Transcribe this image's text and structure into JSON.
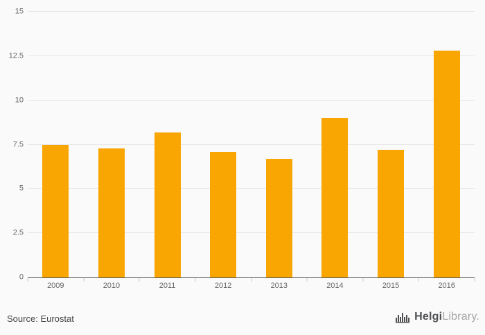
{
  "chart_data": {
    "type": "bar",
    "title": "",
    "categories": [
      "2009",
      "2010",
      "2011",
      "2012",
      "2013",
      "2014",
      "2015",
      "2016"
    ],
    "values": [
      7.5,
      7.3,
      8.2,
      7.1,
      6.7,
      9.0,
      7.2,
      12.8
    ],
    "ylim": [
      0,
      15
    ],
    "yticks": [
      0,
      2.5,
      5,
      7.5,
      10,
      12.5,
      15
    ],
    "xlabel": "",
    "ylabel": "",
    "grid": true,
    "legend": "none",
    "bar_color": "#F9A602"
  },
  "colors": {
    "background": "#fafafa",
    "gridline": "#e6e6e6",
    "axis_line": "#55565a",
    "tick_label": "#666666",
    "bar": "#F9A602"
  },
  "footer": {
    "source_label": "Source: Eurostat",
    "logo": {
      "icon": "bridge-icon",
      "brand_primary": "Helgi",
      "brand_secondary": "Library."
    }
  }
}
